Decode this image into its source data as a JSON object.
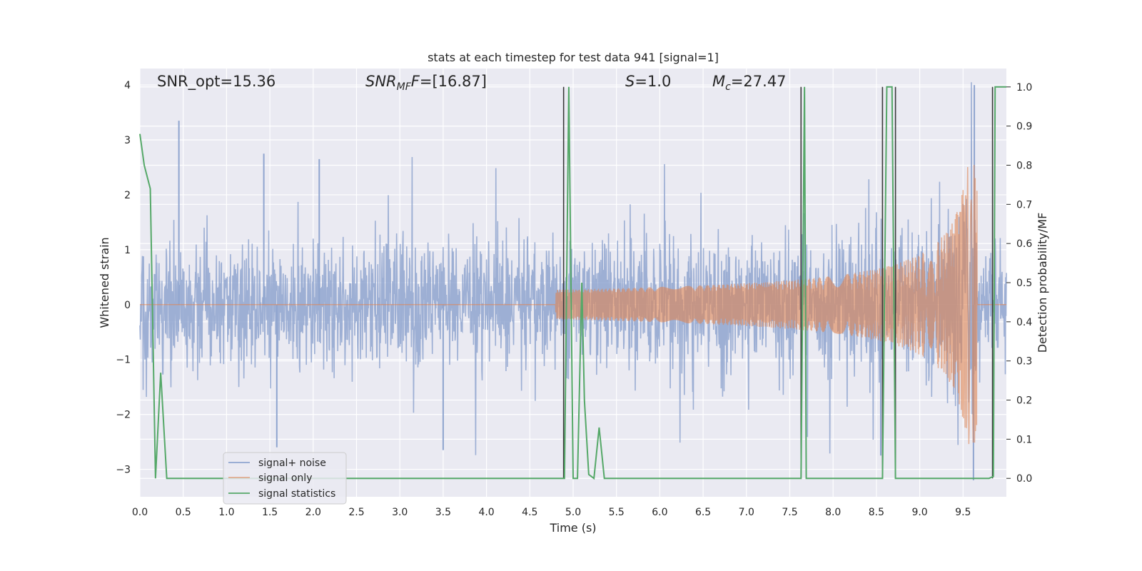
{
  "chart_data": {
    "type": "line",
    "title": "stats at each timestep for test data 941 [signal=1]",
    "xlabel": "Time (s)",
    "ylabel": "Whitened strain",
    "y2label": "Detection probability/MF",
    "xlim": [
      0,
      10
    ],
    "ylim": [
      -3.5,
      4.3
    ],
    "y2lim": [
      -0.047,
      1.047
    ],
    "xticks": [
      "0.0",
      "0.5",
      "1.0",
      "1.5",
      "2.0",
      "2.5",
      "3.0",
      "3.5",
      "4.0",
      "4.5",
      "5.0",
      "5.5",
      "6.0",
      "6.5",
      "7.0",
      "7.5",
      "8.0",
      "8.5",
      "9.0",
      "9.5"
    ],
    "xtick_values": [
      0.0,
      0.5,
      1.0,
      1.5,
      2.0,
      2.5,
      3.0,
      3.5,
      4.0,
      4.5,
      5.0,
      5.5,
      6.0,
      6.5,
      7.0,
      7.5,
      8.0,
      8.5,
      9.0,
      9.5
    ],
    "yticks": [
      "4",
      "3",
      "2",
      "1",
      "0",
      "−1",
      "−2",
      "−3"
    ],
    "ytick_values": [
      4,
      3,
      2,
      1,
      0,
      -1,
      -2,
      -3
    ],
    "y2ticks": [
      "1.0",
      "0.9",
      "0.8",
      "0.7",
      "0.6",
      "0.5",
      "0.4",
      "0.3",
      "0.2",
      "0.1",
      "0.0"
    ],
    "y2tick_values": [
      1.0,
      0.9,
      0.8,
      0.7,
      0.6,
      0.5,
      0.4,
      0.3,
      0.2,
      0.1,
      0.0
    ],
    "grid": true,
    "legend": {
      "position": "lower-left",
      "entries": [
        "signal+ noise",
        "signal only",
        "signal statistics"
      ]
    },
    "annotations": {
      "snr_opt": "SNR_opt=15.36",
      "snr_mf_prefix": "SNR",
      "snr_mf_sub": "MF",
      "snr_mf_value": "=[16.87]",
      "s_label": "S",
      "s_value": "=1.0",
      "mc_label": "M",
      "mc_sub": "c",
      "mc_value": "=27.47"
    },
    "series": [
      {
        "name": "signal+ noise",
        "color": "#8fa5cf",
        "axis": "left",
        "description_stats": {
          "sigma": 0.55,
          "spike_peaks": [
            [
              0.45,
              3.35
            ],
            [
              1.43,
              2.75
            ],
            [
              2.07,
              2.65
            ],
            [
              3.5,
              -2.65
            ],
            [
              1.58,
              -2.6
            ],
            [
              9.62,
              -3.2
            ],
            [
              9.63,
              4.0
            ],
            [
              8.55,
              -2.75
            ]
          ]
        }
      },
      {
        "name": "signal only",
        "color": "#dd8452",
        "axis": "left",
        "chirp": {
          "start": 4.8,
          "end": 9.66,
          "peak_amplitude": 2.55,
          "amplitude_at_7": 0.05
        }
      },
      {
        "name": "signal statistics",
        "color": "#55a868",
        "axis": "right",
        "x": [
          0.0,
          0.05,
          0.12,
          0.18,
          0.24,
          0.31,
          4.87,
          4.9,
          4.95,
          5.0,
          5.05,
          5.1,
          5.13,
          5.18,
          5.24,
          5.3,
          5.36,
          7.61,
          7.63,
          7.67,
          7.69,
          7.74,
          8.55,
          8.57,
          8.62,
          8.68,
          8.72,
          8.78,
          9.8,
          9.85,
          9.87,
          9.92,
          10.0
        ],
        "y": [
          0.88,
          0.8,
          0.74,
          0.0,
          0.27,
          0.0,
          0.0,
          0.0,
          1.0,
          0.0,
          0.0,
          0.5,
          0.2,
          0.01,
          0.0,
          0.13,
          0.0,
          0.0,
          0.0,
          1.0,
          0.0,
          0.0,
          0.0,
          0.0,
          1.0,
          1.0,
          0.0,
          0.0,
          0.0,
          0.005,
          1.0,
          1.0,
          1.0
        ]
      }
    ],
    "vertical_lines": {
      "color": "#3a3a3a",
      "x": [
        4.89,
        7.63,
        8.57,
        8.72,
        9.84
      ],
      "label": ""
    }
  }
}
